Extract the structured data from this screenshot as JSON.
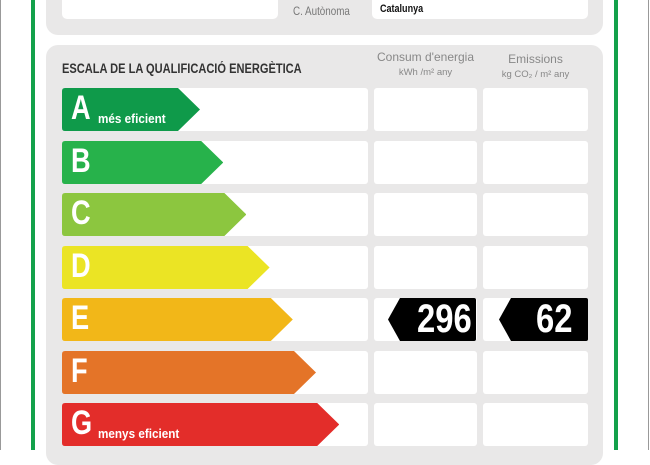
{
  "location": {
    "region_label": "C. Autònoma",
    "region_value": "Catalunya"
  },
  "scale": {
    "title": "ESCALA DE LA QUALIFICACIÓ ENERGÈTICA",
    "col_energy": {
      "label": "Consum d'energia",
      "unit": "kWh /m² any"
    },
    "col_emissions": {
      "label": "Emissions",
      "unit": "kg CO₂ / m² any"
    },
    "classes": [
      {
        "letter": "A",
        "note": "més eficient",
        "color": "#0f9a4a"
      },
      {
        "letter": "B",
        "note": "",
        "color": "#27b24b"
      },
      {
        "letter": "C",
        "note": "",
        "color": "#8cc63f"
      },
      {
        "letter": "D",
        "note": "",
        "color": "#ebe424"
      },
      {
        "letter": "E",
        "note": "",
        "color": "#f2b718"
      },
      {
        "letter": "F",
        "note": "",
        "color": "#e47428"
      },
      {
        "letter": "G",
        "note": "menys eficient",
        "color": "#e32d2a"
      }
    ],
    "rating": {
      "class": "E",
      "energy": "296",
      "emissions": "62",
      "badge_color": "#000000"
    }
  }
}
